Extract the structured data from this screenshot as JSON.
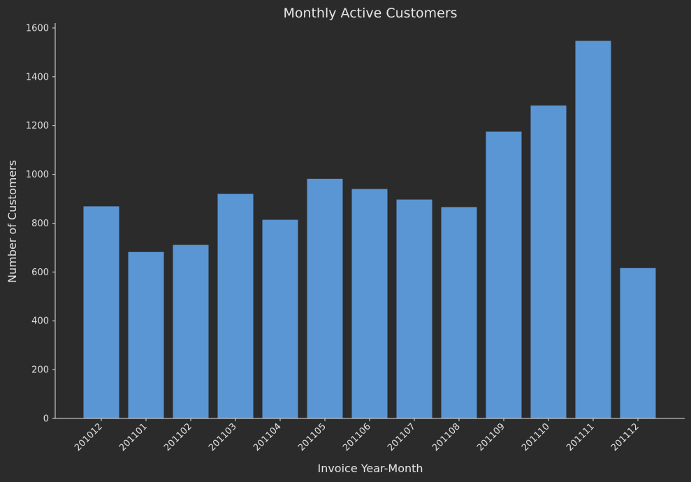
{
  "chart_data": {
    "type": "bar",
    "title": "Monthly Active Customers",
    "xlabel": "Invoice Year-Month",
    "ylabel": "Number of Customers",
    "categories": [
      "201012",
      "201101",
      "201102",
      "201103",
      "201104",
      "201105",
      "201106",
      "201107",
      "201108",
      "201109",
      "201110",
      "201111",
      "201112"
    ],
    "values": [
      869,
      682,
      711,
      920,
      814,
      982,
      940,
      897,
      866,
      1175,
      1282,
      1547,
      616
    ],
    "ylim": [
      0,
      1620
    ],
    "yticks": [
      0,
      200,
      400,
      600,
      800,
      1000,
      1200,
      1400,
      1600
    ],
    "grid": false,
    "legend": "none",
    "colors": {
      "background": "#2b2b2b",
      "bar": "#5b96d4",
      "axis": "#e0e0e0",
      "text": "#e0e0e0"
    }
  }
}
